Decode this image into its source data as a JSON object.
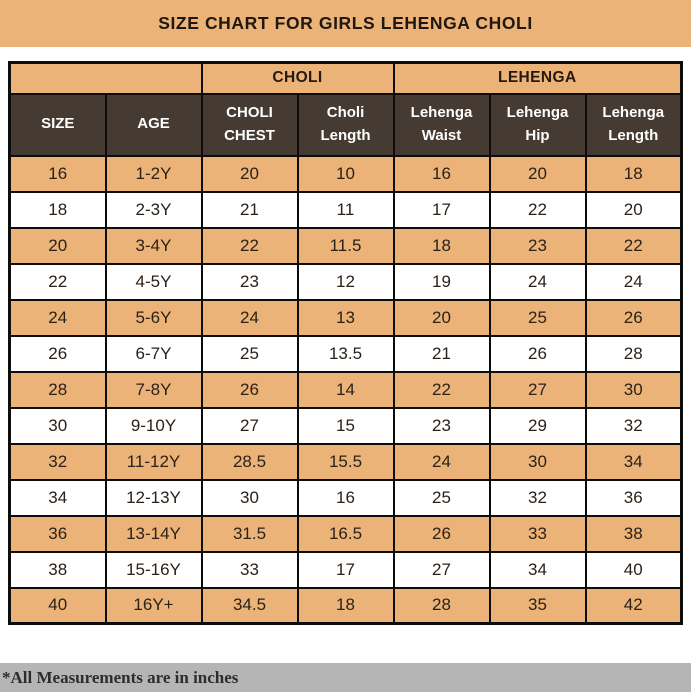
{
  "title": "SIZE CHART FOR GIRLS LEHENGA CHOLI",
  "footnote": "*All Measurements are in inches",
  "colors": {
    "banner_bg": "#EBB377",
    "alt_row_bg": "#EBB377",
    "header_bg": "#463B32",
    "header_text": "#FFFFFF",
    "body_text": "#2B2118",
    "border": "#0D0D0D",
    "footnote_bg": "#B5B5B5"
  },
  "chart_data": {
    "type": "table",
    "title": "SIZE CHART FOR GIRLS LEHENGA CHOLI",
    "units": "inches",
    "column_groups": [
      {
        "label": "",
        "span": 2
      },
      {
        "label": "CHOLI",
        "span": 2
      },
      {
        "label": "LEHENGA",
        "span": 3
      }
    ],
    "columns": [
      "SIZE",
      "AGE",
      "CHOLI CHEST",
      "Choli Length",
      "Lehenga Waist",
      "Lehenga Hip",
      "Lehenga Length"
    ],
    "rows": [
      [
        "16",
        "1-2Y",
        "20",
        "10",
        "16",
        "20",
        "18"
      ],
      [
        "18",
        "2-3Y",
        "21",
        "11",
        "17",
        "22",
        "20"
      ],
      [
        "20",
        "3-4Y",
        "22",
        "11.5",
        "18",
        "23",
        "22"
      ],
      [
        "22",
        "4-5Y",
        "23",
        "12",
        "19",
        "24",
        "24"
      ],
      [
        "24",
        "5-6Y",
        "24",
        "13",
        "20",
        "25",
        "26"
      ],
      [
        "26",
        "6-7Y",
        "25",
        "13.5",
        "21",
        "26",
        "28"
      ],
      [
        "28",
        "7-8Y",
        "26",
        "14",
        "22",
        "27",
        "30"
      ],
      [
        "30",
        "9-10Y",
        "27",
        "15",
        "23",
        "29",
        "32"
      ],
      [
        "32",
        "11-12Y",
        "28.5",
        "15.5",
        "24",
        "30",
        "34"
      ],
      [
        "34",
        "12-13Y",
        "30",
        "16",
        "25",
        "32",
        "36"
      ],
      [
        "36",
        "13-14Y",
        "31.5",
        "16.5",
        "26",
        "33",
        "38"
      ],
      [
        "38",
        "15-16Y",
        "33",
        "17",
        "27",
        "34",
        "40"
      ],
      [
        "40",
        "16Y+",
        "34.5",
        "18",
        "28",
        "35",
        "42"
      ]
    ]
  }
}
